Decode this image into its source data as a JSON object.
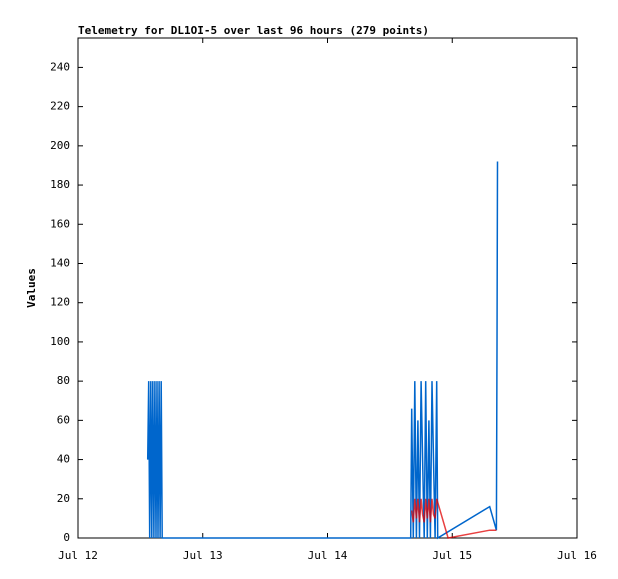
{
  "chart_data": {
    "type": "line",
    "title": "Telemetry for DL1OI-5 over last 96 hours (279 points)",
    "y_label": "Values",
    "xlim": [
      0,
      96
    ],
    "xticks": [
      {
        "value": 0,
        "label": "Jul 12"
      },
      {
        "value": 24,
        "label": "Jul 13"
      },
      {
        "value": 48,
        "label": "Jul 14"
      },
      {
        "value": 72,
        "label": "Jul 15"
      },
      {
        "value": 96,
        "label": "Jul 16"
      }
    ],
    "ylim": [
      0,
      255
    ],
    "yticks": [
      0,
      20,
      40,
      60,
      80,
      100,
      120,
      140,
      160,
      180,
      200,
      220,
      240
    ],
    "series": [
      {
        "color": "#0066cc",
        "x": [
          13.4,
          13.6,
          13.8,
          14.0,
          14.2,
          14.4,
          14.6,
          14.8,
          15.0,
          15.2,
          15.4,
          15.6,
          15.8,
          16.0,
          16.2,
          64.0,
          64.2,
          64.5,
          64.8,
          65.1,
          65.4,
          65.7,
          66.0,
          66.3,
          66.6,
          66.9,
          67.2,
          67.5,
          67.8,
          68.1,
          68.4,
          68.7,
          69.0,
          69.2,
          79.2,
          80.5,
          80.6,
          80.7
        ],
        "values": [
          40,
          80,
          0,
          80,
          0,
          80,
          0,
          80,
          0,
          80,
          0,
          80,
          0,
          80,
          0,
          0,
          66,
          0,
          80,
          0,
          60,
          0,
          80,
          40,
          0,
          80,
          0,
          60,
          0,
          80,
          40,
          0,
          80,
          0,
          16,
          4,
          97,
          192
        ]
      },
      {
        "color": "#e00000",
        "x": [
          64.2,
          64.5,
          64.8,
          65.1,
          65.4,
          65.7,
          66.0,
          66.3,
          66.6,
          66.9,
          67.2,
          67.5,
          67.8,
          68.1,
          68.4,
          68.7,
          69.0,
          71.2,
          79.2,
          80.5
        ],
        "values": [
          14,
          8,
          20,
          10,
          20,
          8,
          20,
          12,
          8,
          20,
          10,
          20,
          8,
          20,
          12,
          10,
          20,
          0,
          4,
          4
        ]
      }
    ]
  }
}
